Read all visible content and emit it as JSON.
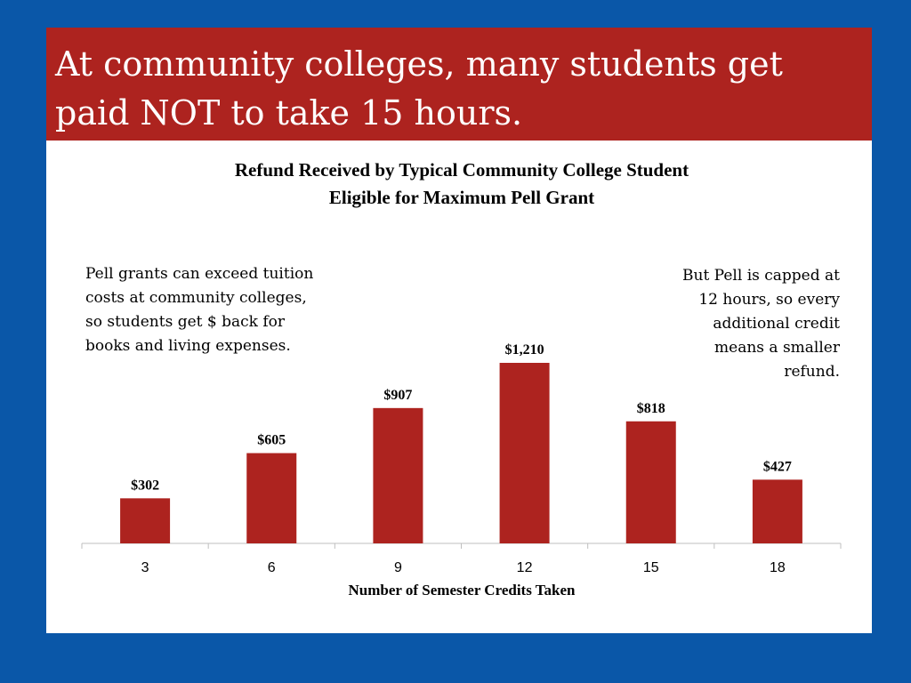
{
  "slide": {
    "title": "At community colleges, many students get paid NOT to take 15 hours."
  },
  "colors": {
    "background": "#0a57a8",
    "title_band": "#ad231f",
    "bar": "#ad231f",
    "axis": "#bfbfbf"
  },
  "notes": {
    "left": "Pell grants can exceed tuition costs at community colleges, so students get $ back for books and living expenses.",
    "right": "But Pell is capped at 12 hours, so every additional credit means a smaller refund."
  },
  "chart_data": {
    "type": "bar",
    "title_lines": [
      "Refund Received by Typical Community College Student",
      "Eligible for Maximum Pell Grant"
    ],
    "xlabel": "Number of Semester Credits Taken",
    "ylabel": "",
    "categories": [
      "3",
      "6",
      "9",
      "12",
      "15",
      "18"
    ],
    "values": [
      302,
      605,
      907,
      1210,
      818,
      427
    ],
    "value_labels": [
      "$302",
      "$605",
      "$907",
      "$1,210",
      "$818",
      "$427"
    ],
    "ylim": [
      0,
      1210
    ],
    "grid": false,
    "legend": "none"
  }
}
